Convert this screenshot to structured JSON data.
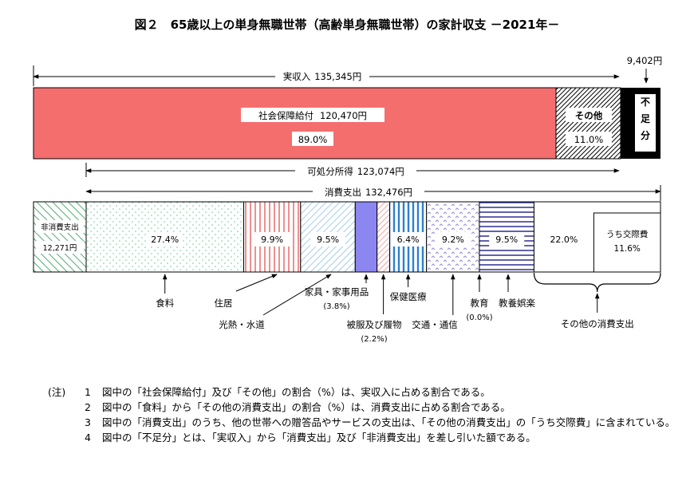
{
  "title": "図２　65歳以上の単身無職世帯（高齢単身無職世帯）の家計収支 －2021年－",
  "chart_data": {
    "type": "bar",
    "income": {
      "label": "実収入",
      "amount": "135,345円",
      "segments": [
        {
          "id": "social-security",
          "label": "社会保障給付",
          "amount": "120,470円",
          "pct_text": "89.0%",
          "value": 120470,
          "color": "#f46e6e"
        },
        {
          "id": "other-income",
          "label": "その他",
          "pct_text": "11.0%",
          "value": 14875
        }
      ],
      "deficit": {
        "label": "不足分",
        "amount": "9,402円",
        "value": 9402
      }
    },
    "disposable": {
      "label": "可処分所得",
      "amount": "123,074円"
    },
    "consumption": {
      "label": "消費支出",
      "amount": "132,476円"
    },
    "expenditure": [
      {
        "id": "non-consumption",
        "label": "非消費支出",
        "amount": "12,271円",
        "value": 12271,
        "pattern": "green-diagonal"
      },
      {
        "id": "food",
        "label": "食料",
        "pct_text": "27.4%",
        "value": 27.4,
        "pattern": "dots"
      },
      {
        "id": "housing",
        "label": "住居",
        "pct_text": "9.9%",
        "value": 9.9,
        "pattern": "red-vertical"
      },
      {
        "id": "utilities",
        "label": "光熱・水道",
        "pct_text": "9.5%",
        "value": 9.5,
        "pattern": "blue-diagonal"
      },
      {
        "id": "furniture",
        "label": "家具・家事用品",
        "sub": "(3.8%)",
        "value": 3.8,
        "pattern": "purple"
      },
      {
        "id": "clothing",
        "label": "被服及び履物",
        "sub": "(2.2%)",
        "value": 2.2,
        "pattern": "pink-diagonal"
      },
      {
        "id": "medical",
        "label": "保健医療",
        "pct_text": "6.4%",
        "value": 6.4,
        "pattern": "blue-vertical"
      },
      {
        "id": "transport",
        "label": "交通・通信",
        "pct_text": "9.2%",
        "value": 9.2,
        "pattern": "purple-zigzag"
      },
      {
        "id": "education",
        "label": "教育",
        "sub": "(0.0%)",
        "value": 0.0,
        "pattern": "none"
      },
      {
        "id": "recreation",
        "label": "教養娯楽",
        "pct_text": "9.5%",
        "value": 9.5,
        "pattern": "navy-horizontal"
      },
      {
        "id": "other-consumption",
        "label": "その他の消費支出",
        "pct_text": "22.0%",
        "value": 22.0,
        "pattern": "white",
        "inner": {
          "label": "うち交際費",
          "pct_text": "11.6%",
          "value": 11.6
        }
      }
    ]
  },
  "notes": {
    "head": "(注)",
    "items": [
      {
        "num": "1",
        "text": "図中の「社会保障給付」及び「その他」の割合（%）は、実収入に占める割合である。"
      },
      {
        "num": "2",
        "text": "図中の「食料」から「その他の消費支出」の割合（%）は、消費支出に占める割合である。"
      },
      {
        "num": "3",
        "text": "図中の「消費支出」のうち、他の世帯への贈答品やサービスの支出は、「その他の消費支出」の「うち交際費」に含まれている。"
      },
      {
        "num": "4",
        "text": "図中の「不足分」とは、「実収入」から「消費支出」及び「非消費支出」を差し引いた額である。"
      }
    ]
  }
}
